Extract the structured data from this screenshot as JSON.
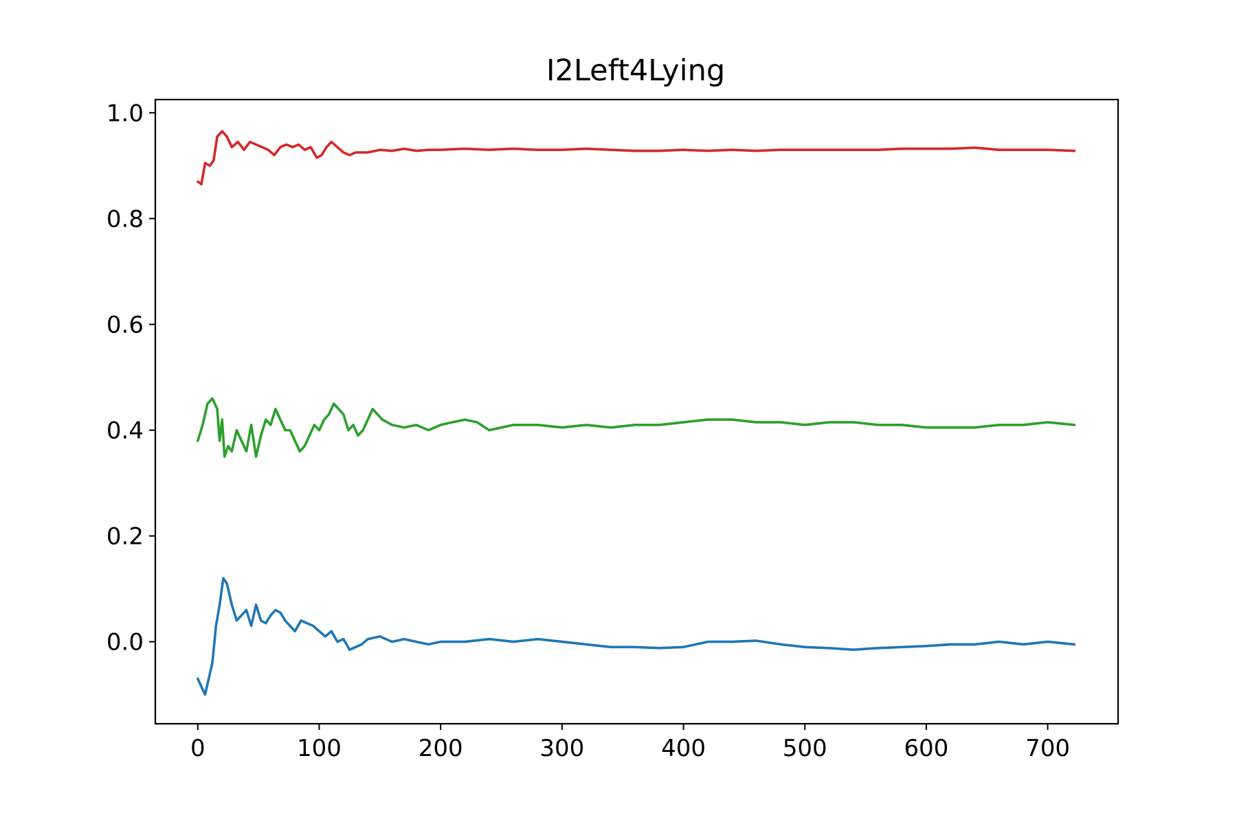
{
  "chart_data": {
    "type": "line",
    "title": "I2Left4Lying",
    "xlabel": "",
    "ylabel": "",
    "xlim": [
      -35,
      758
    ],
    "ylim": [
      -0.155,
      1.025
    ],
    "x_ticks": [
      0,
      100,
      200,
      300,
      400,
      500,
      600,
      700
    ],
    "x_tick_labels": [
      "0",
      "100",
      "200",
      "300",
      "400",
      "500",
      "600",
      "700"
    ],
    "y_ticks": [
      0.0,
      0.2,
      0.4,
      0.6,
      0.8,
      1.0
    ],
    "y_tick_labels": [
      "0.0",
      "0.2",
      "0.4",
      "0.6",
      "0.8",
      "1.0"
    ],
    "grid": false,
    "legend": "none",
    "series": [
      {
        "color": "#d62728",
        "x": [
          0,
          3,
          6,
          10,
          13,
          16,
          20,
          24,
          28,
          33,
          38,
          43,
          48,
          53,
          58,
          63,
          68,
          73,
          78,
          83,
          88,
          93,
          98,
          102,
          106,
          110,
          115,
          120,
          125,
          130,
          140,
          150,
          160,
          170,
          180,
          190,
          200,
          220,
          240,
          260,
          280,
          300,
          320,
          340,
          360,
          380,
          400,
          420,
          440,
          460,
          480,
          500,
          520,
          540,
          560,
          580,
          600,
          620,
          640,
          660,
          680,
          700,
          722
        ],
        "y": [
          0.87,
          0.865,
          0.905,
          0.9,
          0.91,
          0.955,
          0.965,
          0.955,
          0.935,
          0.945,
          0.93,
          0.945,
          0.94,
          0.935,
          0.93,
          0.92,
          0.935,
          0.94,
          0.935,
          0.94,
          0.93,
          0.935,
          0.915,
          0.92,
          0.935,
          0.945,
          0.935,
          0.925,
          0.92,
          0.925,
          0.925,
          0.93,
          0.928,
          0.932,
          0.928,
          0.93,
          0.93,
          0.932,
          0.93,
          0.932,
          0.93,
          0.93,
          0.932,
          0.93,
          0.928,
          0.928,
          0.93,
          0.928,
          0.93,
          0.928,
          0.93,
          0.93,
          0.93,
          0.93,
          0.93,
          0.932,
          0.932,
          0.932,
          0.934,
          0.93,
          0.93,
          0.93,
          0.928
        ]
      },
      {
        "color": "#2ca02c",
        "x": [
          0,
          4,
          8,
          12,
          16,
          18,
          20,
          22,
          25,
          28,
          32,
          36,
          40,
          44,
          48,
          52,
          56,
          60,
          64,
          68,
          72,
          76,
          80,
          84,
          88,
          92,
          96,
          100,
          104,
          108,
          112,
          116,
          120,
          124,
          128,
          132,
          136,
          140,
          144,
          148,
          152,
          160,
          170,
          180,
          190,
          200,
          210,
          220,
          230,
          240,
          250,
          260,
          280,
          300,
          320,
          340,
          360,
          380,
          400,
          420,
          440,
          460,
          480,
          500,
          520,
          540,
          560,
          580,
          600,
          620,
          640,
          660,
          680,
          700,
          722
        ],
        "y": [
          0.38,
          0.41,
          0.45,
          0.46,
          0.44,
          0.38,
          0.42,
          0.35,
          0.37,
          0.36,
          0.4,
          0.38,
          0.36,
          0.41,
          0.35,
          0.39,
          0.42,
          0.41,
          0.44,
          0.42,
          0.4,
          0.4,
          0.38,
          0.36,
          0.37,
          0.39,
          0.41,
          0.4,
          0.42,
          0.43,
          0.45,
          0.44,
          0.43,
          0.4,
          0.41,
          0.39,
          0.4,
          0.42,
          0.44,
          0.43,
          0.42,
          0.41,
          0.405,
          0.41,
          0.4,
          0.41,
          0.415,
          0.42,
          0.415,
          0.4,
          0.405,
          0.41,
          0.41,
          0.405,
          0.41,
          0.405,
          0.41,
          0.41,
          0.415,
          0.42,
          0.42,
          0.415,
          0.415,
          0.41,
          0.415,
          0.415,
          0.41,
          0.41,
          0.405,
          0.405,
          0.405,
          0.41,
          0.41,
          0.415,
          0.41
        ]
      },
      {
        "color": "#1f77b4",
        "x": [
          0,
          3,
          6,
          9,
          12,
          15,
          18,
          21,
          24,
          28,
          32,
          36,
          40,
          44,
          48,
          52,
          56,
          60,
          64,
          68,
          72,
          76,
          80,
          85,
          90,
          95,
          100,
          105,
          110,
          115,
          120,
          125,
          130,
          135,
          140,
          150,
          160,
          170,
          180,
          190,
          200,
          220,
          240,
          260,
          280,
          300,
          320,
          340,
          360,
          380,
          400,
          420,
          440,
          460,
          480,
          500,
          520,
          540,
          560,
          580,
          600,
          620,
          640,
          660,
          680,
          700,
          722
        ],
        "y": [
          -0.07,
          -0.085,
          -0.1,
          -0.07,
          -0.04,
          0.03,
          0.07,
          0.12,
          0.11,
          0.07,
          0.04,
          0.05,
          0.06,
          0.03,
          0.07,
          0.04,
          0.035,
          0.05,
          0.06,
          0.055,
          0.04,
          0.03,
          0.02,
          0.04,
          0.035,
          0.03,
          0.02,
          0.01,
          0.02,
          0.0,
          0.005,
          -0.015,
          -0.01,
          -0.005,
          0.005,
          0.01,
          0.0,
          0.005,
          0.0,
          -0.005,
          0.0,
          0.0,
          0.005,
          0.0,
          0.005,
          0.0,
          -0.005,
          -0.01,
          -0.01,
          -0.012,
          -0.01,
          0.0,
          0.0,
          0.002,
          -0.005,
          -0.01,
          -0.012,
          -0.015,
          -0.012,
          -0.01,
          -0.008,
          -0.005,
          -0.005,
          0.0,
          -0.005,
          0.0,
          -0.005
        ]
      }
    ]
  }
}
